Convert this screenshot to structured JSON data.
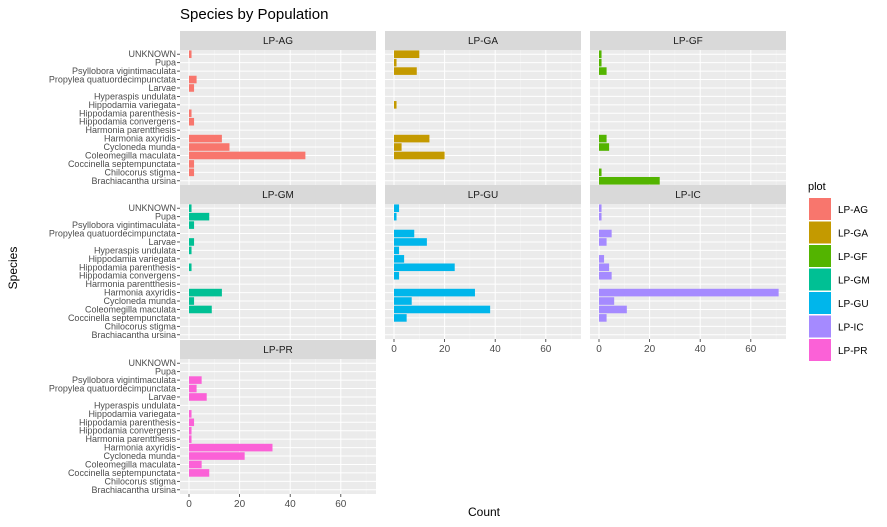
{
  "chart_data": {
    "type": "bar",
    "orientation": "horizontal",
    "title": "Species by Population",
    "xlabel": "Count",
    "ylabel": "Species",
    "xlim": [
      0,
      75
    ],
    "x_ticks": [
      0,
      20,
      40,
      60
    ],
    "grid": true,
    "legend_title": "plot",
    "legend_position": "right",
    "categories": [
      "UNKNOWN",
      "Pupa",
      "Psyllobora vigintimaculata",
      "Propylea quatuordecimpunctata",
      "Larvae",
      "Hyperaspis undulata",
      "Hippodamia variegata",
      "Hippodamia parenthesis",
      "Hippodamia convergens",
      "Harmonia parentthesis",
      "Harmonia axyridis",
      "Cycloneda munda",
      "Coleomegilla maculata",
      "Coccinella septempunctata",
      "Chilocorus stigma",
      "Brachiacantha ursina"
    ],
    "series": [
      {
        "name": "LP-AG",
        "color": "#F8766D",
        "values": [
          1,
          0,
          0,
          3,
          2,
          0,
          0,
          1,
          2,
          0,
          13,
          16,
          46,
          2,
          2,
          0
        ]
      },
      {
        "name": "LP-GA",
        "color": "#C49A00",
        "values": [
          10,
          1,
          9,
          0,
          0,
          0,
          1,
          0,
          0,
          0,
          14,
          3,
          20,
          0,
          0,
          0
        ]
      },
      {
        "name": "LP-GF",
        "color": "#53B400",
        "values": [
          1,
          1,
          3,
          0,
          0,
          0,
          0,
          0,
          0,
          0,
          3,
          4,
          0,
          0,
          1,
          24
        ]
      },
      {
        "name": "LP-GM",
        "color": "#00C094",
        "values": [
          1,
          8,
          2,
          0,
          2,
          1,
          0,
          1,
          0,
          0,
          13,
          2,
          9,
          0,
          0,
          0
        ]
      },
      {
        "name": "LP-GU",
        "color": "#00B6EB",
        "values": [
          2,
          1,
          0,
          8,
          13,
          2,
          4,
          24,
          2,
          0,
          32,
          7,
          38,
          5,
          0,
          0
        ]
      },
      {
        "name": "LP-IC",
        "color": "#A58AFF",
        "values": [
          1,
          1,
          0,
          5,
          3,
          0,
          2,
          4,
          5,
          0,
          71,
          6,
          11,
          3,
          0,
          0
        ]
      },
      {
        "name": "LP-PR",
        "color": "#FB61D7",
        "values": [
          0,
          0,
          5,
          3,
          7,
          0,
          1,
          2,
          1,
          1,
          33,
          22,
          5,
          8,
          0,
          0
        ]
      }
    ]
  }
}
